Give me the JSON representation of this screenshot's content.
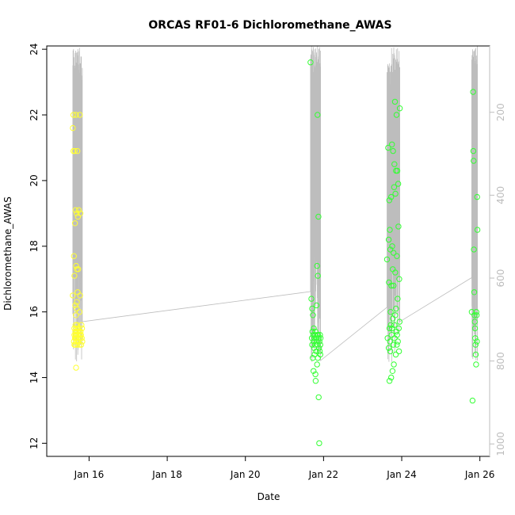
{
  "chart_data": {
    "type": "scatter",
    "title": "ORCAS RF01-6 Dichloromethane_AWAS",
    "xlabel": "Date",
    "ylabel": "Dichloromethane_AWAS",
    "xlim": [
      "2016-01-14T22:00",
      "2016-01-26T06:00"
    ],
    "ylim": [
      11.6,
      24.1
    ],
    "x_ticks": [
      {
        "label": "Jan 16",
        "value": "2016-01-16"
      },
      {
        "label": "Jan 18",
        "value": "2016-01-18"
      },
      {
        "label": "Jan 20",
        "value": "2016-01-20"
      },
      {
        "label": "Jan 22",
        "value": "2016-01-22"
      },
      {
        "label": "Jan 24",
        "value": "2016-01-24"
      },
      {
        "label": "Jan 26",
        "value": "2016-01-26"
      }
    ],
    "y_ticks": [
      12,
      14,
      16,
      18,
      20,
      22,
      24
    ],
    "secondary_axis": {
      "side": "right",
      "reversed": true,
      "ylim": [
        40,
        1030
      ],
      "ticks": [
        200,
        400,
        600,
        800,
        1000
      ],
      "color": "#bdbdbd"
    },
    "colors": {
      "early": "#ffff33",
      "late": "#33ff33",
      "line": "#bdbdbd"
    },
    "series": [
      {
        "color": "#ffff33",
        "x": [
          "2016-01-15T14:00",
          "2016-01-15T14:00",
          "2016-01-15T14:20",
          "2016-01-15T14:20",
          "2016-01-15T14:40",
          "2016-01-15T14:40",
          "2016-01-15T15:00",
          "2016-01-15T15:00",
          "2016-01-15T15:00",
          "2016-01-15T15:00",
          "2016-01-15T15:10",
          "2016-01-15T15:20",
          "2016-01-15T15:20",
          "2016-01-15T15:30",
          "2016-01-15T15:30",
          "2016-01-15T15:30",
          "2016-01-15T15:40",
          "2016-01-15T15:40",
          "2016-01-15T15:40",
          "2016-01-15T15:50",
          "2016-01-15T15:50",
          "2016-01-15T16:00",
          "2016-01-15T16:00",
          "2016-01-15T16:00",
          "2016-01-15T16:00",
          "2016-01-15T16:10",
          "2016-01-15T16:10",
          "2016-01-15T16:20",
          "2016-01-15T16:20",
          "2016-01-15T16:20",
          "2016-01-15T16:30",
          "2016-01-15T16:30",
          "2016-01-15T16:30",
          "2016-01-15T16:40",
          "2016-01-15T16:40",
          "2016-01-15T16:50",
          "2016-01-15T17:00",
          "2016-01-15T17:00",
          "2016-01-15T17:00",
          "2016-01-15T17:10",
          "2016-01-15T17:10",
          "2016-01-15T17:20",
          "2016-01-15T17:20",
          "2016-01-15T17:30",
          "2016-01-15T17:40",
          "2016-01-15T18:00",
          "2016-01-15T18:00",
          "2016-01-15T18:10",
          "2016-01-15T18:20",
          "2016-01-15T18:20",
          "2016-01-15T18:30",
          "2016-01-15T18:40",
          "2016-01-15T18:40",
          "2016-01-15T18:50",
          "2016-01-15T19:00",
          "2016-01-15T19:10",
          "2016-01-15T19:20",
          "2016-01-15T19:30",
          "2016-01-15T19:40",
          "2016-01-15T19:50"
        ],
        "y": [
          21.6,
          16.5,
          22.0,
          20.9,
          15.1,
          17.7,
          15.5,
          15.0,
          17.1,
          15.3,
          20.9,
          15.2,
          18.7,
          15.0,
          15.4,
          16.2,
          15.3,
          15.6,
          19.1,
          15.9,
          15.2,
          14.3,
          22.0,
          15.5,
          17.4,
          15.1,
          15.3,
          19.0,
          16.1,
          15.4,
          15.2,
          16.3,
          17.3,
          15.6,
          15.0,
          20.9,
          15.4,
          16.6,
          15.3,
          15.1,
          18.9,
          15.5,
          17.3,
          15.2,
          19.1,
          15.4,
          15.0,
          16.0,
          15.3,
          22.0,
          16.5,
          15.2,
          19.0,
          15.4,
          15.3,
          15.0,
          15.6,
          15.2,
          15.5,
          15.1
        ]
      },
      {
        "color": "#33ff33",
        "x": [
          "2016-01-21T16:00",
          "2016-01-21T16:30",
          "2016-01-21T16:50",
          "2016-01-21T17:00",
          "2016-01-21T17:00",
          "2016-01-21T17:10",
          "2016-01-21T17:20",
          "2016-01-21T17:30",
          "2016-01-21T17:40",
          "2016-01-21T17:50",
          "2016-01-21T18:00",
          "2016-01-21T18:00",
          "2016-01-21T18:10",
          "2016-01-21T18:20",
          "2016-01-21T18:30",
          "2016-01-21T18:40",
          "2016-01-21T18:50",
          "2016-01-21T19:00",
          "2016-01-21T19:00",
          "2016-01-21T19:10",
          "2016-01-21T19:20",
          "2016-01-21T19:30",
          "2016-01-21T19:40",
          "2016-01-21T19:50",
          "2016-01-21T20:00",
          "2016-01-21T20:00",
          "2016-01-21T20:10",
          "2016-01-21T20:20",
          "2016-01-21T20:20",
          "2016-01-21T20:30",
          "2016-01-21T20:30",
          "2016-01-21T20:40",
          "2016-01-21T20:50",
          "2016-01-21T21:00",
          "2016-01-21T21:00",
          "2016-01-21T21:10",
          "2016-01-21T21:20",
          "2016-01-21T21:30",
          "2016-01-21T21:40",
          "2016-01-21T21:50",
          "2016-01-21T22:00",
          "2016-01-21T22:00",
          "2016-01-21T22:10"
        ],
        "y": [
          23.6,
          16.4,
          15.2,
          15.0,
          16.1,
          15.4,
          14.6,
          15.9,
          15.3,
          14.2,
          15.1,
          15.5,
          14.9,
          15.2,
          14.7,
          15.3,
          15.0,
          14.1,
          15.4,
          13.9,
          15.2,
          14.8,
          16.2,
          15.1,
          17.4,
          14.4,
          15.3,
          22.0,
          15.0,
          17.1,
          14.6,
          15.3,
          18.9,
          13.4,
          15.2,
          14.9,
          12.0,
          15.1,
          14.8,
          15.3,
          15.0,
          14.7,
          15.2
        ]
      },
      {
        "color": "#33ff33",
        "x": [
          "2016-01-23T15:00",
          "2016-01-23T15:20",
          "2016-01-23T15:40",
          "2016-01-23T16:00",
          "2016-01-23T16:00",
          "2016-01-23T16:10",
          "2016-01-23T16:20",
          "2016-01-23T16:30",
          "2016-01-23T16:30",
          "2016-01-23T16:40",
          "2016-01-23T16:50",
          "2016-01-23T17:00",
          "2016-01-23T17:00",
          "2016-01-23T17:10",
          "2016-01-23T17:20",
          "2016-01-23T17:30",
          "2016-01-23T17:30",
          "2016-01-23T17:40",
          "2016-01-23T17:50",
          "2016-01-23T18:00",
          "2016-01-23T18:00",
          "2016-01-23T18:10",
          "2016-01-23T18:20",
          "2016-01-23T18:30",
          "2016-01-23T18:30",
          "2016-01-23T18:40",
          "2016-01-23T18:50",
          "2016-01-23T19:00",
          "2016-01-23T19:00",
          "2016-01-23T19:10",
          "2016-01-23T19:20",
          "2016-01-23T19:30",
          "2016-01-23T19:30",
          "2016-01-23T19:40",
          "2016-01-23T19:50",
          "2016-01-23T20:00",
          "2016-01-23T20:00",
          "2016-01-23T20:10",
          "2016-01-23T20:20",
          "2016-01-23T20:30",
          "2016-01-23T20:30",
          "2016-01-23T20:40",
          "2016-01-23T20:50",
          "2016-01-23T21:00",
          "2016-01-23T21:00",
          "2016-01-23T21:10",
          "2016-01-23T21:20",
          "2016-01-23T21:30",
          "2016-01-23T21:40",
          "2016-01-23T21:50",
          "2016-01-23T22:00",
          "2016-01-23T22:10",
          "2016-01-23T22:20",
          "2016-01-23T22:30",
          "2016-01-23T22:40",
          "2016-01-23T22:50"
        ],
        "y": [
          17.6,
          15.2,
          21.0,
          18.2,
          14.9,
          16.9,
          19.4,
          15.5,
          13.9,
          18.5,
          15.1,
          14.8,
          17.9,
          16.0,
          15.6,
          19.5,
          14.0,
          16.8,
          15.3,
          21.1,
          15.5,
          18.0,
          14.2,
          17.3,
          15.8,
          20.9,
          15.0,
          17.8,
          16.8,
          14.4,
          19.8,
          15.6,
          20.5,
          15.2,
          22.4,
          17.2,
          15.9,
          19.6,
          14.7,
          20.3,
          16.1,
          15.4,
          22.0,
          15.0,
          17.7,
          15.3,
          20.3,
          16.4,
          15.1,
          19.9,
          18.6,
          15.5,
          14.8,
          17.0,
          15.7,
          22.2
        ]
      },
      {
        "color": "#33ff33",
        "x": [
          "2016-01-25T19:00",
          "2016-01-25T19:30",
          "2016-01-25T19:50",
          "2016-01-25T20:00",
          "2016-01-25T20:10",
          "2016-01-25T20:20",
          "2016-01-25T20:30",
          "2016-01-25T20:40",
          "2016-01-25T20:50",
          "2016-01-25T21:00",
          "2016-01-25T21:10",
          "2016-01-25T21:20",
          "2016-01-25T21:30",
          "2016-01-25T21:40",
          "2016-01-25T21:50",
          "2016-01-25T22:00",
          "2016-01-25T22:10",
          "2016-01-25T22:20",
          "2016-01-25T22:30"
        ],
        "y": [
          16.0,
          13.3,
          22.7,
          20.9,
          20.6,
          17.9,
          16.6,
          15.9,
          15.7,
          15.5,
          15.2,
          15.0,
          14.7,
          14.4,
          16.0,
          15.9,
          15.1,
          19.5,
          18.5
        ]
      }
    ]
  }
}
